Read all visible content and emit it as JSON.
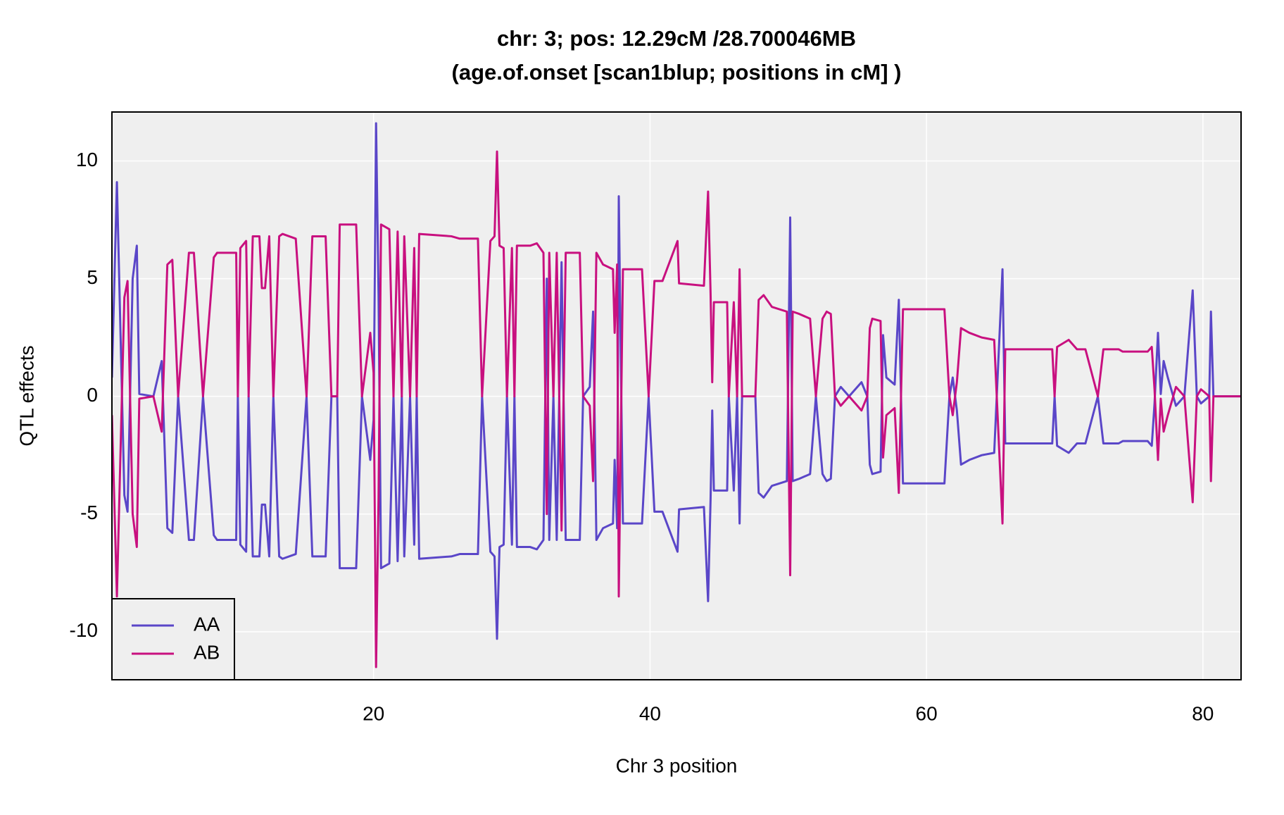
{
  "chart_data": {
    "type": "line",
    "title": "chr: 3; pos: 12.29cM /28.700046MB",
    "subtitle": "(age.of.onset [scan1blup; positions in cM] )",
    "xlabel": "Chr 3 position",
    "ylabel": "QTL effects",
    "xlim": [
      1.07,
      82.76
    ],
    "ylim": [
      -12.04,
      12.08
    ],
    "xticks": [
      20,
      40,
      60,
      80
    ],
    "yticks": [
      -10,
      -5,
      0,
      5,
      10
    ],
    "grid": true,
    "legend": "bottom-left",
    "x": [
      1.07,
      1.43,
      1.97,
      2.2,
      2.57,
      2.87,
      3.05,
      4.07,
      4.67,
      5.08,
      5.44,
      5.86,
      6.64,
      7.0,
      7.66,
      8.44,
      8.68,
      10.06,
      10.18,
      10.36,
      10.78,
      10.96,
      11.26,
      11.74,
      11.92,
      12.15,
      12.45,
      12.75,
      13.17,
      13.41,
      14.37,
      15.15,
      15.57,
      16.53,
      16.95,
      17.37,
      17.55,
      18.45,
      18.74,
      19.16,
      19.76,
      20.0,
      20.18,
      20.36,
      20.54,
      21.14,
      21.44,
      21.74,
      22.04,
      22.22,
      22.64,
      22.94,
      23.12,
      23.3,
      25.63,
      26.23,
      27.55,
      27.85,
      28.45,
      28.75,
      28.93,
      29.11,
      29.41,
      29.65,
      30.01,
      30.19,
      30.37,
      31.33,
      31.81,
      32.29,
      32.53,
      32.71,
      33.01,
      33.25,
      33.6,
      33.9,
      34.92,
      35.16,
      35.64,
      35.88,
      36.12,
      36.6,
      37.32,
      37.44,
      37.62,
      37.74,
      38.04,
      39.42,
      39.9,
      40.32,
      40.9,
      41.99,
      42.1,
      43.9,
      44.2,
      44.38,
      44.5,
      44.62,
      45.58,
      45.7,
      46.06,
      46.3,
      46.48,
      46.66,
      47.62,
      47.86,
      48.22,
      48.82,
      49.9,
      50.14,
      50.32,
      50.8,
      51.58,
      52.0,
      52.48,
      52.78,
      53.08,
      53.38,
      53.8,
      54.4,
      55.3,
      55.72,
      55.9,
      56.08,
      56.68,
      56.86,
      57.1,
      57.7,
      58.0,
      58.3,
      61.3,
      61.66,
      61.9,
      62.2,
      62.5,
      63.1,
      64.0,
      64.9,
      65.5,
      65.7,
      66.7,
      68.2,
      69.1,
      69.27,
      69.45,
      70.29,
      70.89,
      71.5,
      72.4,
      72.8,
      73.9,
      74.2,
      76.0,
      76.3,
      76.5,
      76.75,
      76.95,
      77.16,
      77.46,
      78.05,
      78.66,
      79.26,
      79.56,
      79.86,
      80.46,
      80.58,
      80.76,
      82.76
    ],
    "series": [
      {
        "name": "AA",
        "color": "#5a46c8",
        "values": [
          0.8,
          9.1,
          -4.2,
          -4.9,
          5,
          6.4,
          0.1,
          0,
          1.5,
          -5.6,
          -5.8,
          0,
          -6.1,
          -6.1,
          0,
          -5.9,
          -6.1,
          -6.1,
          0,
          -6.3,
          -6.6,
          0,
          -6.8,
          -6.8,
          -4.6,
          -4.6,
          -6.8,
          0,
          -6.8,
          -6.9,
          -6.7,
          0,
          -6.8,
          -6.8,
          0,
          0,
          -7.3,
          -7.3,
          -7.3,
          0,
          -2.7,
          -1.0,
          11.6,
          4.3,
          -7.3,
          -7.1,
          0,
          -7.0,
          0,
          -6.8,
          0,
          -6.3,
          0,
          -6.9,
          -6.8,
          -6.7,
          -6.7,
          0,
          -6.6,
          -6.8,
          -10.3,
          -6.4,
          -6.3,
          0,
          -6.3,
          0,
          -6.4,
          -6.4,
          -6.5,
          -6.1,
          5,
          -6.1,
          0,
          -6.1,
          5.7,
          -6.1,
          -6.1,
          0,
          0.4,
          3.6,
          -6.1,
          -5.6,
          -5.4,
          -2.7,
          -5.6,
          8.5,
          -5.4,
          -5.4,
          0,
          -4.9,
          -4.9,
          -6.6,
          -4.8,
          -4.7,
          -8.7,
          -4.4,
          -0.6,
          -4.0,
          -4.0,
          0,
          -4.0,
          0,
          -5.4,
          0,
          0,
          -4.1,
          -4.3,
          -3.8,
          -3.6,
          7.6,
          -3.6,
          -3.5,
          -3.3,
          0,
          -3.3,
          -3.6,
          -3.5,
          0,
          0.4,
          0,
          0.6,
          0,
          -2.9,
          -3.3,
          -3.2,
          2.6,
          0.8,
          0.5,
          4.1,
          -3.7,
          -3.7,
          0,
          0.8,
          -0.6,
          -2.9,
          -2.7,
          -2.5,
          -2.4,
          5.4,
          -2.0,
          -2.0,
          -2.0,
          -2.0,
          0,
          -2.1,
          -2.4,
          -2.0,
          -2.0,
          0,
          -2.0,
          -2.0,
          -1.9,
          -1.9,
          -2.1,
          -0.3,
          2.7,
          0.1,
          1.5,
          0.8,
          -0.4,
          0,
          4.5,
          0,
          -0.3,
          0,
          3.6,
          0,
          0
        ]
      },
      {
        "name": "AB",
        "color": "#c8107f",
        "values": [
          -0.8,
          -8.5,
          4.2,
          4.9,
          -5,
          -6.4,
          -0.1,
          0,
          -1.5,
          5.6,
          5.8,
          0,
          6.1,
          6.1,
          0,
          5.9,
          6.1,
          6.1,
          0,
          6.3,
          6.6,
          0,
          6.8,
          6.8,
          4.6,
          4.6,
          6.8,
          0,
          6.8,
          6.9,
          6.7,
          0,
          6.8,
          6.8,
          0,
          0,
          7.3,
          7.3,
          7.3,
          0,
          2.7,
          1.0,
          -11.5,
          -4.3,
          7.3,
          7.1,
          0,
          7.0,
          0,
          6.8,
          0,
          6.3,
          0,
          6.9,
          6.8,
          6.7,
          6.7,
          0,
          6.6,
          6.8,
          10.4,
          6.4,
          6.3,
          0,
          6.3,
          0,
          6.4,
          6.4,
          6.5,
          6.1,
          -5,
          6.1,
          0,
          6.1,
          -5.7,
          6.1,
          6.1,
          0,
          -0.4,
          -3.6,
          6.1,
          5.6,
          5.4,
          2.7,
          5.6,
          -8.5,
          5.4,
          5.4,
          0,
          4.9,
          4.9,
          6.6,
          4.8,
          4.7,
          8.7,
          4.4,
          0.6,
          4.0,
          4.0,
          0,
          4.0,
          0,
          5.4,
          0,
          0,
          4.1,
          4.3,
          3.8,
          3.6,
          -7.6,
          3.6,
          3.5,
          3.3,
          0,
          3.3,
          3.6,
          3.5,
          0,
          -0.4,
          0,
          -0.6,
          0,
          2.9,
          3.3,
          3.2,
          -2.6,
          -0.8,
          -0.5,
          -4.1,
          3.7,
          3.7,
          0,
          -0.8,
          0.6,
          2.9,
          2.7,
          2.5,
          2.4,
          -5.4,
          2.0,
          2.0,
          2.0,
          2.0,
          0,
          2.1,
          2.4,
          2.0,
          2.0,
          0,
          2.0,
          2.0,
          1.9,
          1.9,
          2.1,
          0.3,
          -2.7,
          -0.1,
          -1.5,
          -0.8,
          0.4,
          0,
          -4.5,
          0,
          0.3,
          0,
          -3.6,
          0,
          0
        ]
      }
    ]
  }
}
